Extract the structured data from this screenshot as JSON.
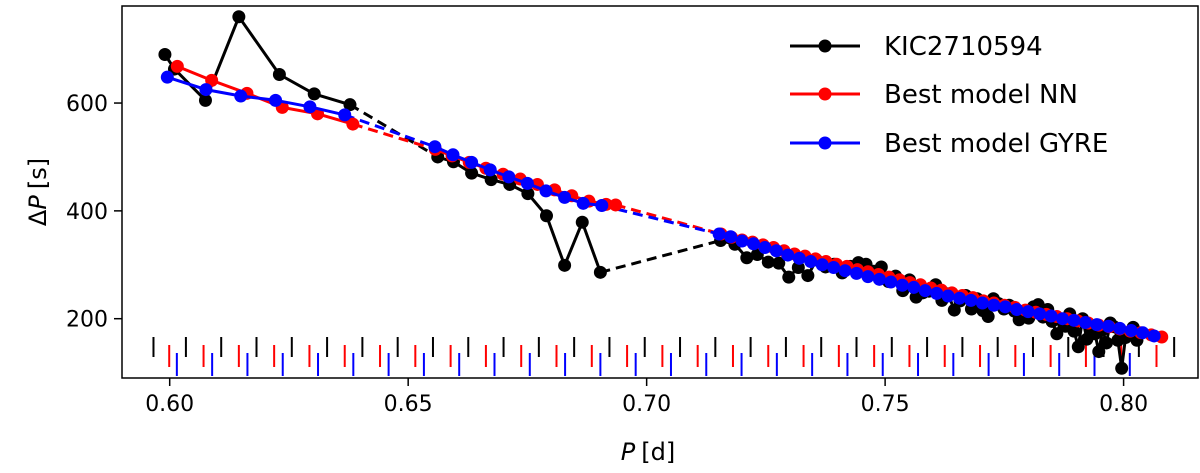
{
  "chart_data": {
    "type": "line",
    "xlabel_var": "P",
    "xlabel_unit": "[d]",
    "ylabel_prefix": "Δ",
    "ylabel_var": "P",
    "ylabel_unit": "[s]",
    "xlim": [
      0.59,
      0.8156
    ],
    "ylim": [
      90,
      780
    ],
    "xticks": [
      0.6,
      0.65,
      0.7,
      0.75,
      0.8
    ],
    "xtick_labels": [
      "0.60",
      "0.65",
      "0.70",
      "0.75",
      "0.80"
    ],
    "yticks": [
      200,
      400,
      600
    ],
    "ytick_labels": [
      "200",
      "400",
      "600"
    ],
    "grid": false,
    "legend_position": "top-right",
    "rug": {
      "black_row": [
        0.5966,
        0.6034,
        0.6108,
        0.6182,
        0.6256,
        0.633,
        0.6404,
        0.6478,
        0.6552,
        0.6626,
        0.67,
        0.6774,
        0.6848,
        0.6922,
        0.6996,
        0.707,
        0.7144,
        0.7218,
        0.7292,
        0.7366,
        0.744,
        0.7514,
        0.7588,
        0.7662,
        0.7736,
        0.781,
        0.7884,
        0.7958,
        0.8032,
        0.8106
      ],
      "red_row": [
        0.5999,
        0.6071,
        0.6145,
        0.6219,
        0.6293,
        0.6367,
        0.6441,
        0.6515,
        0.6589,
        0.6663,
        0.6737,
        0.6811,
        0.6885,
        0.6959,
        0.7033,
        0.7107,
        0.7181,
        0.7255,
        0.7329,
        0.7403,
        0.7477,
        0.7551,
        0.7625,
        0.7699,
        0.7773,
        0.7847,
        0.7921,
        0.7995,
        0.8069
      ],
      "blue_row": [
        0.6015,
        0.6089,
        0.6163,
        0.6237,
        0.6311,
        0.6385,
        0.6459,
        0.6533,
        0.6607,
        0.6681,
        0.6755,
        0.6829,
        0.6903,
        0.6977,
        0.7051,
        0.7125,
        0.7199,
        0.7273,
        0.7347,
        0.7421,
        0.7495,
        0.7569,
        0.7643,
        0.7717,
        0.7791,
        0.7865,
        0.7939,
        0.8013
      ]
    },
    "series": [
      {
        "name": "KIC2710594",
        "color": "#000000",
        "segments": [
          {
            "x": [
              0.599,
              0.601,
              0.6075,
              0.6145,
              0.623,
              0.6303,
              0.6378
            ],
            "y": [
              690,
              663,
              605,
              760,
              653,
              617,
              597
            ]
          },
          {
            "x": [
              0.6562,
              0.6595,
              0.6633,
              0.6674,
              0.6713,
              0.6751,
              0.679,
              0.6828,
              0.6865,
              0.6903
            ],
            "y": [
              500,
              491,
              470,
              458,
              449,
              432,
              391,
              299,
              379,
              286
            ]
          },
          {
            "x": [
              0.7155,
              0.7185,
              0.721,
              0.7232,
              0.7255,
              0.7277,
              0.7298,
              0.7318,
              0.7338,
              0.7356,
              0.7375,
              0.7393,
              0.741,
              0.7427,
              0.7444,
              0.746,
              0.7476,
              0.7492,
              0.7507,
              0.7522,
              0.7537,
              0.7551,
              0.7565,
              0.7579,
              0.7592,
              0.7606,
              0.7619,
              0.7632,
              0.7645,
              0.7657,
              0.7669,
              0.7681,
              0.7693,
              0.7705,
              0.7716,
              0.7727,
              0.7738,
              0.7749,
              0.776,
              0.7771,
              0.7781,
              0.7791,
              0.7801,
              0.7811,
              0.7821,
              0.7831,
              0.7841,
              0.785,
              0.786,
              0.7869,
              0.7878,
              0.7887,
              0.7896,
              0.7905,
              0.7914,
              0.7923,
              0.7931,
              0.794,
              0.7948,
              0.7956,
              0.7964,
              0.7972,
              0.798,
              0.7988,
              0.7996,
              0.8004,
              0.8012,
              0.802,
              0.8028
            ],
            "y": [
              345,
              338,
              313,
              319,
              305,
              303,
              277,
              295,
              280,
              309,
              296,
              301,
              285,
              297,
              304,
              301,
              288,
              296,
              269,
              279,
              252,
              272,
              240,
              248,
              251,
              263,
              234,
              246,
              216,
              233,
              243,
              218,
              237,
              215,
              204,
              237,
              228,
              218,
              225,
              214,
              198,
              212,
              201,
              222,
              226,
              203,
              217,
              195,
              172,
              197,
              186,
              209,
              177,
              148,
              200,
              162,
              180,
              172,
              139,
              180,
              155,
              192,
              185,
              160,
              108,
              165,
              172,
              184,
              160
            ]
          }
        ]
      },
      {
        "name": "Best model NN",
        "color": "#ff0000",
        "segments": [
          {
            "x": [
              0.6016,
              0.6088,
              0.6162,
              0.6236,
              0.631,
              0.6384
            ],
            "y": [
              668,
              642,
              618,
              592,
              580,
              561
            ]
          },
          {
            "x": [
              0.6557,
              0.6592,
              0.6628,
              0.6663,
              0.6699,
              0.6735,
              0.6771,
              0.6807,
              0.6843,
              0.6879,
              0.6915,
              0.6935
            ],
            "y": [
              514,
              502,
              490,
              479,
              468,
              459,
              449,
              439,
              428,
              418,
              412,
              411
            ]
          },
          {
            "x": [
              0.7156,
              0.7178,
              0.72,
              0.7222,
              0.7244,
              0.7266,
              0.7288,
              0.731,
              0.7332,
              0.7354,
              0.7376,
              0.7398,
              0.742,
              0.7442,
              0.7464,
              0.7486,
              0.7508,
              0.753,
              0.7552,
              0.7574,
              0.7596,
              0.7618,
              0.764,
              0.7662,
              0.7684,
              0.7706,
              0.7728,
              0.775,
              0.7772,
              0.7794,
              0.7816,
              0.7838,
              0.786,
              0.7882,
              0.7904,
              0.7926,
              0.7948,
              0.797,
              0.7992,
              0.8014,
              0.8036,
              0.8058,
              0.808
            ],
            "y": [
              357,
              351,
              346,
              342,
              337,
              332,
              326,
              320,
              316,
              311,
              306,
              301,
              297,
              291,
              287,
              282,
              277,
              272,
              267,
              263,
              257,
              253,
              248,
              243,
              239,
              233,
              229,
              225,
              221,
              216,
              212,
              208,
              204,
              200,
              196,
              192,
              188,
              185,
              181,
              177,
              174,
              170,
              166
            ]
          }
        ]
      },
      {
        "name": "Best model GYRE",
        "color": "#0000ff",
        "segments": [
          {
            "x": [
              0.5995,
              0.6076,
              0.6149,
              0.6222,
              0.6294,
              0.6367
            ],
            "y": [
              648,
              625,
              613,
              605,
              593,
              578
            ]
          },
          {
            "x": [
              0.6556,
              0.6594,
              0.6633,
              0.6672,
              0.6711,
              0.675,
              0.6789,
              0.6828,
              0.6867,
              0.6906
            ],
            "y": [
              519,
              504,
              490,
              476,
              463,
              451,
              437,
              425,
              414,
              410
            ]
          },
          {
            "x": [
              0.7152,
              0.7176,
              0.72,
              0.7224,
              0.7248,
              0.7272,
              0.7296,
              0.732,
              0.7344,
              0.7368,
              0.7392,
              0.7416,
              0.744,
              0.7464,
              0.7488,
              0.7512,
              0.7536,
              0.756,
              0.7584,
              0.7608,
              0.7632,
              0.7656,
              0.768,
              0.7704,
              0.7728,
              0.7752,
              0.7776,
              0.78,
              0.7824,
              0.7848,
              0.7872,
              0.7896,
              0.792,
              0.7944,
              0.7968,
              0.7992,
              0.8016,
              0.804,
              0.8064
            ],
            "y": [
              357,
              352,
              344,
              339,
              332,
              326,
              318,
              312,
              306,
              300,
              295,
              289,
              284,
              278,
              273,
              268,
              262,
              258,
              252,
              247,
              242,
              238,
              234,
              229,
              225,
              222,
              217,
              213,
              209,
              205,
              200,
              197,
              193,
              189,
              186,
              182,
              178,
              174,
              168
            ]
          }
        ]
      }
    ]
  }
}
